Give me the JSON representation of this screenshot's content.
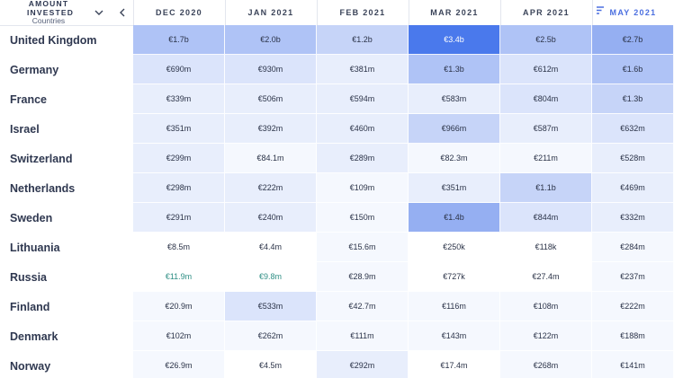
{
  "header": {
    "amount_label": "AMOUNT INVESTED",
    "sublabel": "Countries",
    "columns": [
      "DEC 2020",
      "JAN 2021",
      "FEB 2021",
      "MAR 2021",
      "APR 2021",
      "MAY 2021"
    ]
  },
  "rows": [
    {
      "country": "United Kingdom",
      "values": [
        "€1.7b",
        "€2.0b",
        "€1.2b",
        "€3.4b",
        "€2.5b",
        "€2.7b"
      ]
    },
    {
      "country": "Germany",
      "values": [
        "€690m",
        "€930m",
        "€381m",
        "€1.3b",
        "€612m",
        "€1.6b"
      ]
    },
    {
      "country": "France",
      "values": [
        "€339m",
        "€506m",
        "€594m",
        "€583m",
        "€804m",
        "€1.3b"
      ]
    },
    {
      "country": "Israel",
      "values": [
        "€351m",
        "€392m",
        "€460m",
        "€966m",
        "€587m",
        "€632m"
      ]
    },
    {
      "country": "Switzerland",
      "values": [
        "€299m",
        "€84.1m",
        "€289m",
        "€82.3m",
        "€211m",
        "€528m"
      ]
    },
    {
      "country": "Netherlands",
      "values": [
        "€298m",
        "€222m",
        "€109m",
        "€351m",
        "€1.1b",
        "€469m"
      ]
    },
    {
      "country": "Sweden",
      "values": [
        "€291m",
        "€240m",
        "€150m",
        "€1.4b",
        "€844m",
        "€332m"
      ]
    },
    {
      "country": "Lithuania",
      "values": [
        "€8.5m",
        "€4.4m",
        "€15.6m",
        "€250k",
        "€118k",
        "€284m"
      ]
    },
    {
      "country": "Russia",
      "values": [
        "€11.9m",
        "€9.8m",
        "€28.9m",
        "€727k",
        "€27.4m",
        "€237m"
      ]
    },
    {
      "country": "Finland",
      "values": [
        "€20.9m",
        "€533m",
        "€42.7m",
        "€116m",
        "€108m",
        "€222m"
      ]
    },
    {
      "country": "Denmark",
      "values": [
        "€102m",
        "€262m",
        "€111m",
        "€143m",
        "€122m",
        "€188m"
      ]
    },
    {
      "country": "Norway",
      "values": [
        "€26.9m",
        "€4.5m",
        "€292m",
        "€17.4m",
        "€268m",
        "€141m"
      ]
    }
  ],
  "heat_colors": {
    "level0": "#ffffff",
    "level1": "#f5f8fe",
    "level2": "#e8eefc",
    "level3": "#dbe4fb",
    "level4": "#c6d4f8",
    "level5": "#afc3f6",
    "level6": "#95aff2",
    "level7": "#4a79ec"
  },
  "text_colors": {
    "teal": "#2f8f85",
    "accent": "#4b6fe0"
  },
  "icons": {
    "dropdown": "chevron-down-icon",
    "back": "chevron-left-icon",
    "sort": "sort-descending-icon"
  }
}
